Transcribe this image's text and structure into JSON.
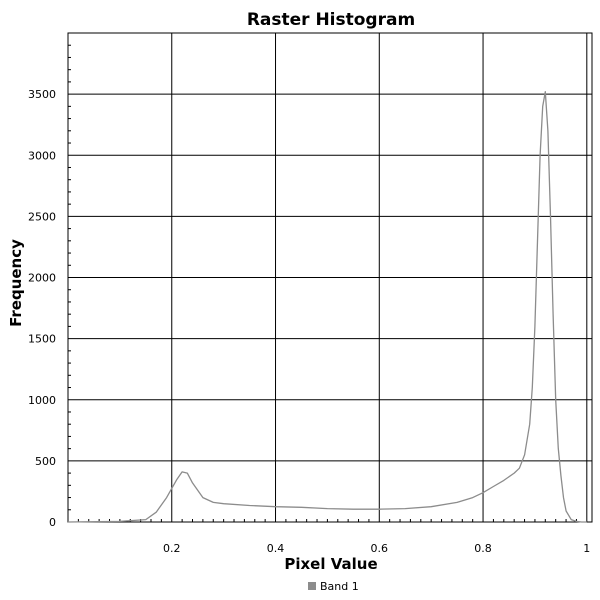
{
  "chart_data": {
    "type": "line",
    "title": "Raster Histogram",
    "xlabel": "Pixel Value",
    "ylabel": "Frequency",
    "xlim": [
      0,
      1.01
    ],
    "ylim": [
      0,
      4000
    ],
    "x_ticks": [
      "0.2",
      "0.4",
      "0.6",
      "0.8",
      "1"
    ],
    "y_ticks": [
      "0",
      "500",
      "1000",
      "1500",
      "2000",
      "2500",
      "3000",
      "3500"
    ],
    "grid": true,
    "legend": {
      "placement": "bottom-center"
    },
    "series": [
      {
        "name": "Band 1",
        "color": "#8c8c8c",
        "x": [
          0.0,
          0.1,
          0.15,
          0.17,
          0.19,
          0.21,
          0.22,
          0.23,
          0.24,
          0.26,
          0.28,
          0.3,
          0.35,
          0.4,
          0.45,
          0.5,
          0.55,
          0.6,
          0.65,
          0.7,
          0.75,
          0.78,
          0.8,
          0.82,
          0.84,
          0.86,
          0.87,
          0.88,
          0.89,
          0.895,
          0.9,
          0.905,
          0.91,
          0.915,
          0.92,
          0.925,
          0.93,
          0.935,
          0.94,
          0.945,
          0.95,
          0.955,
          0.96,
          0.97,
          0.98,
          0.99,
          1.0
        ],
        "values": [
          0,
          5,
          20,
          80,
          200,
          350,
          410,
          400,
          320,
          200,
          160,
          150,
          135,
          125,
          120,
          110,
          105,
          105,
          110,
          125,
          160,
          200,
          240,
          290,
          340,
          400,
          440,
          550,
          800,
          1100,
          1600,
          2300,
          3000,
          3400,
          3520,
          3200,
          2500,
          1700,
          1000,
          600,
          380,
          200,
          90,
          20,
          5,
          0,
          0
        ]
      }
    ]
  }
}
